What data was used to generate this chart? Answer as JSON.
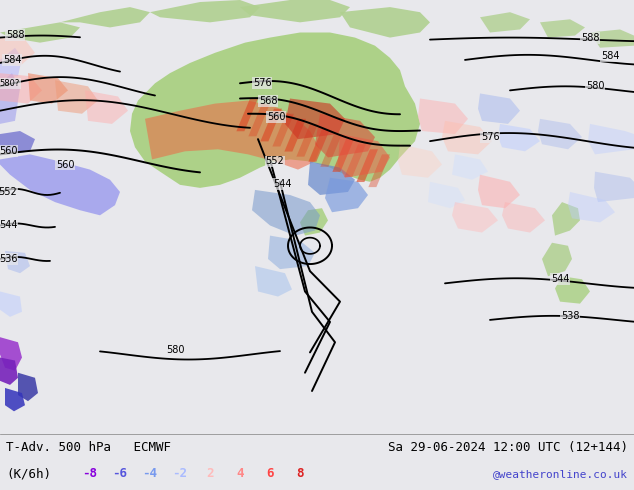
{
  "title_left": "T-Adv. 500 hPa   ECMWF",
  "title_right": "Sa 29-06-2024 12:00 UTC (12+144)",
  "subtitle_left": "(K/6h)",
  "legend_values": [
    -8,
    -6,
    -4,
    -2,
    2,
    4,
    6,
    8
  ],
  "neg_colors": [
    "#8800dd",
    "#5555dd",
    "#7799ee",
    "#aabbff"
  ],
  "pos_colors": [
    "#ffbbbb",
    "#ff8888",
    "#ff4444",
    "#dd2222"
  ],
  "watermark": "@weatheronline.co.uk",
  "watermark_color": "#4444cc",
  "bg_color": "#e8e8ec",
  "land_color": "#b8d4a8",
  "aus_color": "#a8d090",
  "title_fontsize": 9,
  "legend_fontsize": 9,
  "contour_lw": 1.4
}
